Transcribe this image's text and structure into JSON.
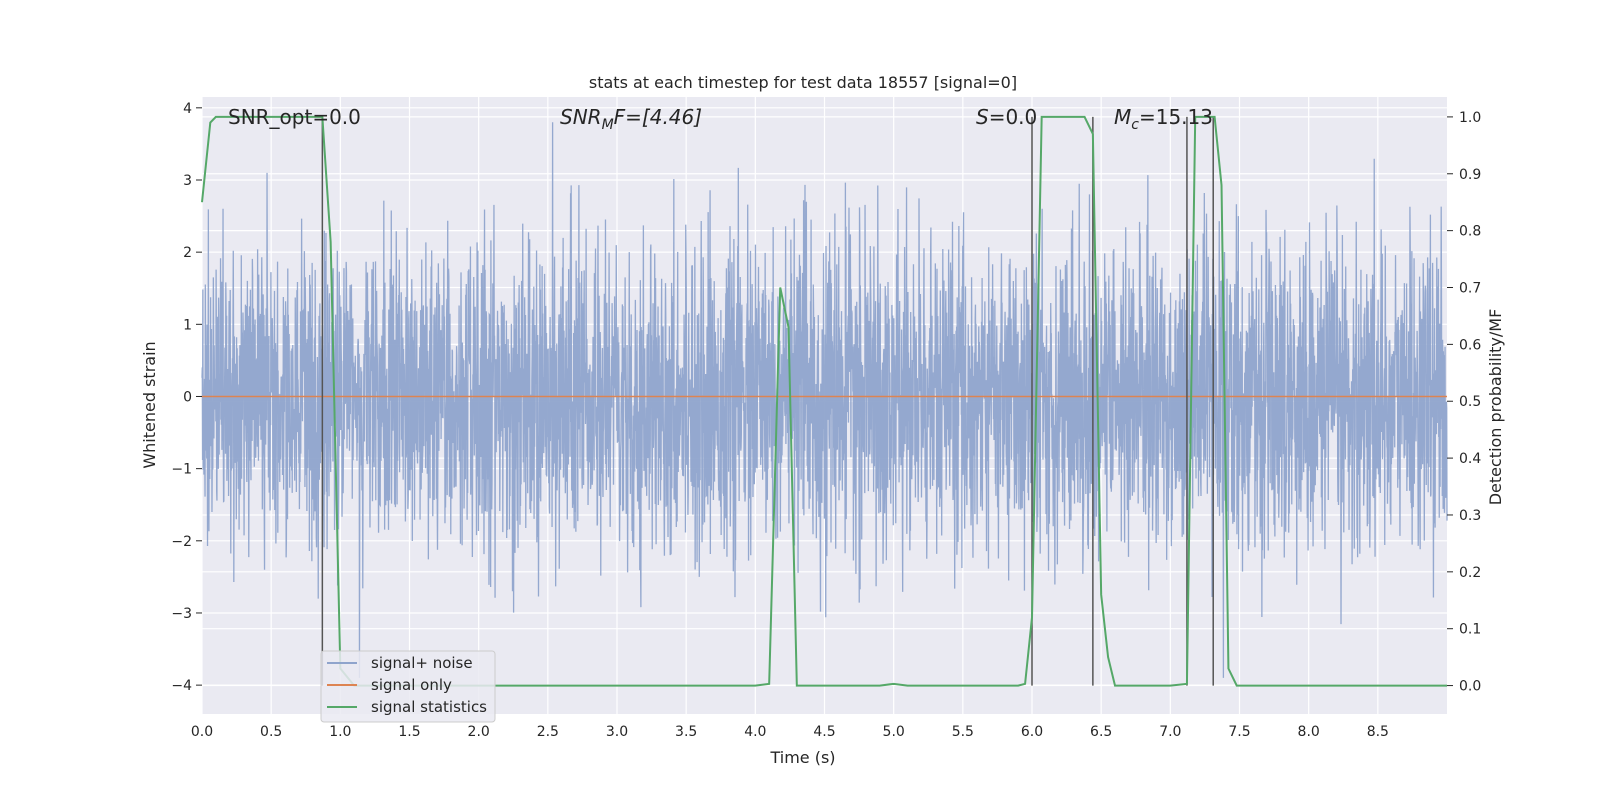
{
  "chart_data": {
    "type": "line",
    "title": "stats at each timestep for test data 18557 [signal=0]",
    "xlabel": "Time (s)",
    "ylabel": "Whitened strain",
    "y2label": "Detection probability/MF",
    "xlim": [
      0.0,
      9.0
    ],
    "ylim": [
      -4.4,
      4.15
    ],
    "y2lim": [
      -0.05,
      1.035
    ],
    "xticks": [
      "0.0",
      "0.5",
      "1.0",
      "1.5",
      "2.0",
      "2.5",
      "3.0",
      "3.5",
      "4.0",
      "4.5",
      "5.0",
      "5.5",
      "6.0",
      "6.5",
      "7.0",
      "7.5",
      "8.0",
      "8.5"
    ],
    "yticks": [
      "4",
      "3",
      "2",
      "1",
      "0",
      "−1",
      "−2",
      "−3",
      "−4"
    ],
    "y2ticks": [
      "1.0",
      "0.9",
      "0.8",
      "0.7",
      "0.6",
      "0.5",
      "0.4",
      "0.3",
      "0.2",
      "0.1",
      "0.0"
    ],
    "grid": true,
    "legend_position": "lower-left",
    "annotations": {
      "snr_opt": "SNR_opt=0.0",
      "snr_mf_base": "SNR",
      "snr_mf_sub": "M",
      "snr_mf_rest": "F=[4.46]",
      "s_stat_italic": "S",
      "s_stat_rest": "=0.0",
      "mc_base": "M",
      "mc_sub": "c",
      "mc_rest": "=15.13"
    },
    "series": [
      {
        "name": "signal+ noise",
        "color": "#8fa4cc",
        "description_values": "whitened noise, approx normal, std~1, peaks to +/-3.8, 9 s duration"
      },
      {
        "name": "signal only",
        "color": "#dd8452",
        "x": [
          0.0,
          9.0
        ],
        "y": [
          0.0,
          0.0
        ]
      },
      {
        "name": "signal statistics",
        "color": "#55a868",
        "axis": "right",
        "x": [
          0.0,
          0.06,
          0.1,
          0.2,
          0.3,
          0.4,
          0.5,
          0.6,
          0.7,
          0.8,
          0.87,
          0.93,
          1.0,
          1.1,
          2.0,
          3.0,
          4.0,
          4.1,
          4.18,
          4.24,
          4.3,
          4.4,
          4.9,
          5.0,
          5.1,
          5.9,
          5.95,
          6.0,
          6.07,
          6.2,
          6.38,
          6.44,
          6.5,
          6.55,
          6.6,
          7.0,
          7.12,
          7.18,
          7.25,
          7.32,
          7.37,
          7.42,
          7.48,
          8.0,
          9.0
        ],
        "y": [
          0.85,
          0.99,
          1.0,
          1.0,
          1.0,
          1.0,
          1.0,
          1.0,
          1.0,
          1.0,
          1.0,
          0.78,
          0.03,
          0.0,
          0.0,
          0.0,
          0.0,
          0.003,
          0.7,
          0.63,
          0.0,
          0.0,
          0.0,
          0.003,
          0.0,
          0.0,
          0.003,
          0.12,
          1.0,
          1.0,
          1.0,
          0.97,
          0.16,
          0.05,
          0.0,
          0.0,
          0.003,
          1.0,
          1.0,
          1.0,
          0.88,
          0.03,
          0.0,
          0.0,
          0.0
        ]
      }
    ],
    "vlines_x": [
      0.87,
      6.0,
      6.44,
      7.12,
      7.31
    ]
  }
}
